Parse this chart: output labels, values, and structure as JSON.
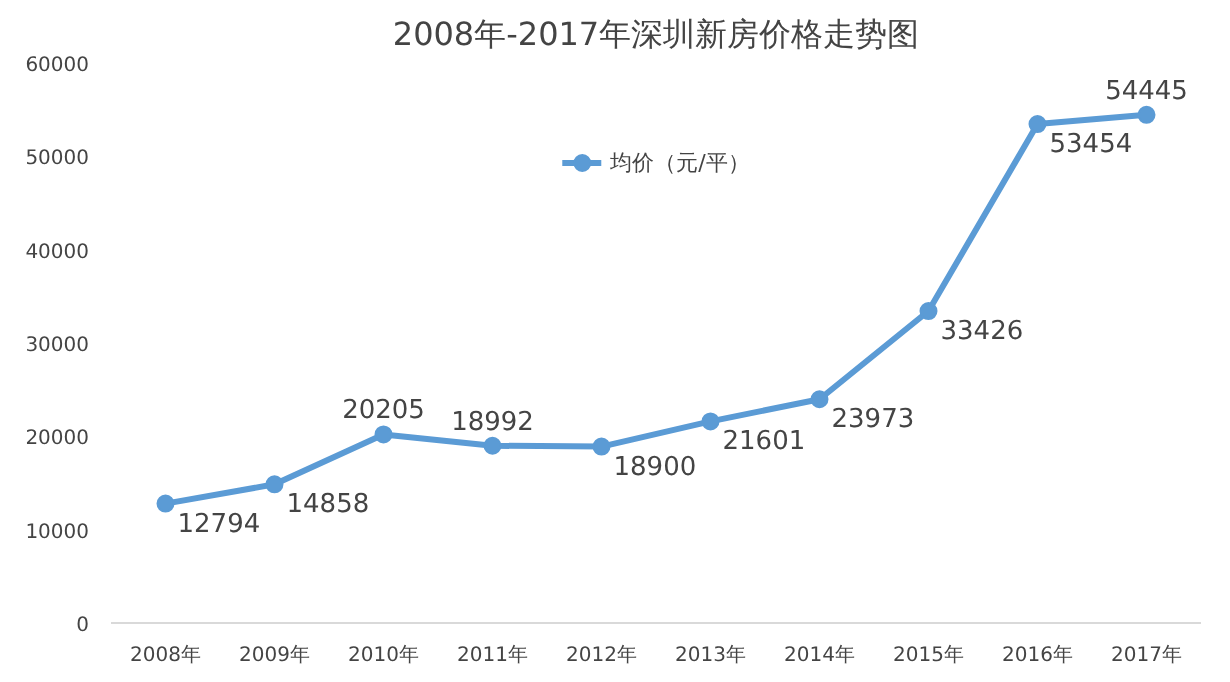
{
  "chart_data": {
    "type": "line",
    "title": "2008年-2017年深圳新房价格走势图",
    "categories": [
      "2008年",
      "2009年",
      "2010年",
      "2011年",
      "2012年",
      "2013年",
      "2014年",
      "2015年",
      "2016年",
      "2017年"
    ],
    "series": [
      {
        "name": "均价（元/平）",
        "color": "#5b9bd5",
        "values": [
          12794,
          14858,
          20205,
          18992,
          18900,
          21601,
          23973,
          33426,
          53454,
          54445
        ]
      }
    ],
    "ylim": [
      0,
      60000
    ],
    "yticks": [
      0,
      10000,
      20000,
      30000,
      40000,
      50000,
      60000
    ],
    "grid": false,
    "legend": "top",
    "marker": "circle",
    "line_style": "solid",
    "data_labels": true
  }
}
